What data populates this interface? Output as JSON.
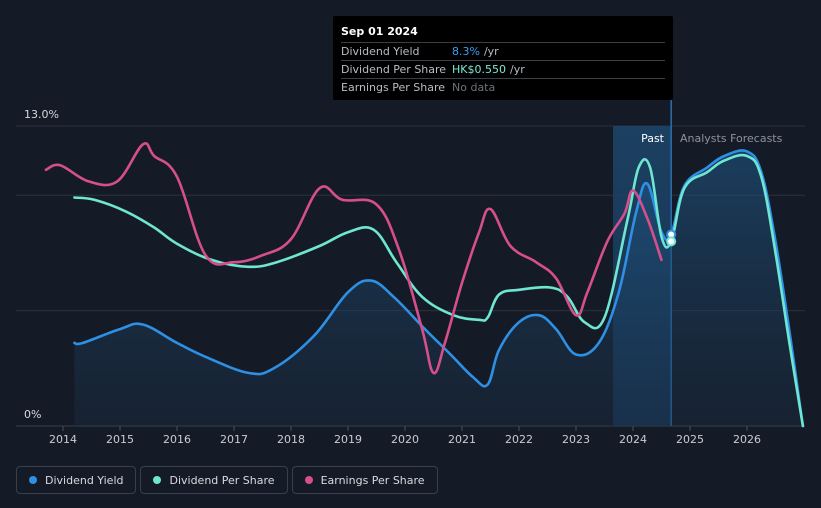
{
  "chart_data": {
    "type": "line",
    "x_ticks": [
      "2014",
      "2015",
      "2016",
      "2017",
      "2018",
      "2019",
      "2020",
      "2021",
      "2022",
      "2023",
      "2024",
      "2025",
      "2026"
    ],
    "y_axis_top_label": "13.0%",
    "y_axis_bottom_label": "0%",
    "ylim": [
      0,
      13.0
    ],
    "past_label": "Past",
    "forecast_label": "Analysts Forecasts",
    "past_region": [
      2023.65,
      2024.67
    ],
    "series": [
      {
        "name": "Dividend Yield",
        "color": "#2e90e4",
        "fill": true,
        "points": [
          [
            2014.2,
            3.6
          ],
          [
            2014.35,
            3.6
          ],
          [
            2015.0,
            4.2
          ],
          [
            2015.4,
            4.4
          ],
          [
            2016.0,
            3.6
          ],
          [
            2016.5,
            3.0
          ],
          [
            2017.25,
            2.3
          ],
          [
            2017.7,
            2.5
          ],
          [
            2018.4,
            3.9
          ],
          [
            2019.0,
            5.8
          ],
          [
            2019.4,
            6.3
          ],
          [
            2019.8,
            5.6
          ],
          [
            2020.35,
            4.2
          ],
          [
            2020.8,
            3.1
          ],
          [
            2021.2,
            2.1
          ],
          [
            2021.45,
            1.8
          ],
          [
            2021.65,
            3.3
          ],
          [
            2022.0,
            4.5
          ],
          [
            2022.35,
            4.8
          ],
          [
            2022.65,
            4.2
          ],
          [
            2023.0,
            3.1
          ],
          [
            2023.4,
            3.6
          ],
          [
            2023.75,
            5.8
          ],
          [
            2024.05,
            9.2
          ],
          [
            2024.25,
            10.5
          ],
          [
            2024.5,
            8.4
          ],
          [
            2024.67,
            8.3
          ],
          [
            2024.9,
            10.4
          ],
          [
            2025.3,
            11.2
          ],
          [
            2025.6,
            11.7
          ],
          [
            2026.0,
            11.9
          ],
          [
            2026.25,
            11.0
          ],
          [
            2026.5,
            8.0
          ],
          [
            2026.75,
            4.0
          ],
          [
            2026.98,
            0.0
          ]
        ]
      },
      {
        "name": "Dividend Per Share",
        "color": "#6fe6d1",
        "fill": false,
        "points": [
          [
            2014.2,
            9.9
          ],
          [
            2014.55,
            9.8
          ],
          [
            2015.1,
            9.3
          ],
          [
            2015.6,
            8.6
          ],
          [
            2016.0,
            7.9
          ],
          [
            2016.6,
            7.2
          ],
          [
            2017.25,
            6.9
          ],
          [
            2017.75,
            7.1
          ],
          [
            2018.5,
            7.8
          ],
          [
            2019.0,
            8.4
          ],
          [
            2019.45,
            8.5
          ],
          [
            2019.85,
            7.1
          ],
          [
            2020.3,
            5.6
          ],
          [
            2020.85,
            4.8
          ],
          [
            2021.3,
            4.6
          ],
          [
            2021.45,
            4.7
          ],
          [
            2021.65,
            5.7
          ],
          [
            2022.0,
            5.9
          ],
          [
            2022.55,
            6.0
          ],
          [
            2022.85,
            5.6
          ],
          [
            2023.15,
            4.5
          ],
          [
            2023.5,
            4.7
          ],
          [
            2023.9,
            8.9
          ],
          [
            2024.1,
            11.2
          ],
          [
            2024.3,
            11.2
          ],
          [
            2024.5,
            8.2
          ],
          [
            2024.67,
            8.0
          ],
          [
            2024.9,
            10.3
          ],
          [
            2025.3,
            11.0
          ],
          [
            2025.6,
            11.5
          ],
          [
            2026.0,
            11.7
          ],
          [
            2026.25,
            10.8
          ],
          [
            2026.5,
            7.5
          ],
          [
            2026.75,
            3.5
          ],
          [
            2026.98,
            0.0
          ]
        ]
      },
      {
        "name": "Earnings Per Share",
        "color": "#d64f8c",
        "fill": false,
        "points": [
          [
            2013.7,
            11.1
          ],
          [
            2013.95,
            11.3
          ],
          [
            2014.45,
            10.6
          ],
          [
            2014.95,
            10.6
          ],
          [
            2015.4,
            12.2
          ],
          [
            2015.6,
            11.7
          ],
          [
            2016.0,
            10.8
          ],
          [
            2016.5,
            7.4
          ],
          [
            2017.0,
            7.1
          ],
          [
            2017.5,
            7.4
          ],
          [
            2018.0,
            8.1
          ],
          [
            2018.5,
            10.3
          ],
          [
            2018.9,
            9.8
          ],
          [
            2019.5,
            9.6
          ],
          [
            2019.9,
            7.6
          ],
          [
            2020.3,
            4.2
          ],
          [
            2020.5,
            2.3
          ],
          [
            2020.7,
            3.6
          ],
          [
            2021.0,
            6.2
          ],
          [
            2021.3,
            8.4
          ],
          [
            2021.5,
            9.4
          ],
          [
            2021.85,
            7.8
          ],
          [
            2022.3,
            7.1
          ],
          [
            2022.65,
            6.4
          ],
          [
            2023.0,
            4.8
          ],
          [
            2023.2,
            5.8
          ],
          [
            2023.55,
            8.0
          ],
          [
            2023.85,
            9.2
          ],
          [
            2024.0,
            10.2
          ],
          [
            2024.25,
            9.0
          ],
          [
            2024.5,
            7.2
          ]
        ]
      }
    ],
    "highlight_x": 2024.67,
    "legend": [
      "Dividend Yield",
      "Dividend Per Share",
      "Earnings Per Share"
    ]
  },
  "tooltip": {
    "date": "Sep 01 2024",
    "rows": [
      {
        "label": "Dividend Yield",
        "value": "8.3%",
        "unit": "/yr"
      },
      {
        "label": "Dividend Per Share",
        "value": "HK$0.550",
        "unit": "/yr"
      },
      {
        "label": "Earnings Per Share",
        "value": "No data",
        "unit": ""
      }
    ]
  },
  "colors": {
    "background": "#151b26",
    "grid": "#2c323c",
    "past_region": "#1c3b5a",
    "yield": "#2e90e4",
    "dps": "#6fe6d1",
    "eps": "#d64f8c"
  }
}
